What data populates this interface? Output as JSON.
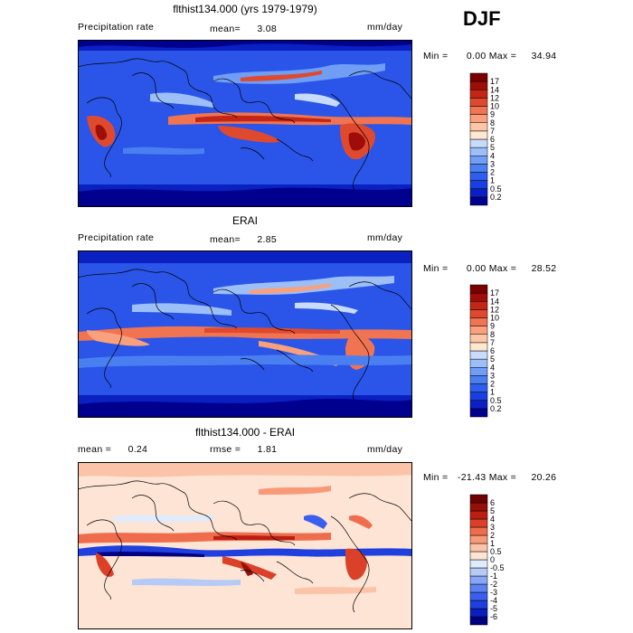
{
  "season": "DJF",
  "chart_data": [
    {
      "type": "heatmap",
      "title": "flthist134.000 (yrs 1979-1979)",
      "field_label": "Precipitation rate",
      "stat1_label": "mean=",
      "stat1_value": "3.08",
      "units": "mm/day",
      "min_label": "Min =",
      "min_value": "0.00",
      "max_label": "Max =",
      "max_value": "34.94",
      "colorbar": {
        "levels": [
          "0.2",
          "0.5",
          "1",
          "2",
          "3",
          "4",
          "5",
          "6",
          "7",
          "8",
          "9",
          "10",
          "12",
          "14",
          "17"
        ],
        "colors": [
          "#00008f",
          "#0b1fc4",
          "#1a3fe0",
          "#2e5ef0",
          "#4a7ff2",
          "#6f9ef4",
          "#9cbff8",
          "#c8dbfb",
          "#ffe8d0",
          "#fdc6a6",
          "#f9a07c",
          "#f07452",
          "#df4a2e",
          "#c42616",
          "#9e0d08",
          "#7a0000"
        ]
      }
    },
    {
      "type": "heatmap",
      "title": "ERAI",
      "field_label": "Precipitation rate",
      "stat1_label": "mean=",
      "stat1_value": "2.85",
      "units": "mm/day",
      "min_label": "Min =",
      "min_value": "0.00",
      "max_label": "Max =",
      "max_value": "28.52",
      "colorbar": {
        "levels": [
          "0.2",
          "0.5",
          "1",
          "2",
          "3",
          "4",
          "5",
          "6",
          "7",
          "8",
          "9",
          "10",
          "12",
          "14",
          "17"
        ],
        "colors": [
          "#00008f",
          "#0b1fc4",
          "#1a3fe0",
          "#2e5ef0",
          "#4a7ff2",
          "#6f9ef4",
          "#9cbff8",
          "#c8dbfb",
          "#ffe8d0",
          "#fdc6a6",
          "#f9a07c",
          "#f07452",
          "#df4a2e",
          "#c42616",
          "#9e0d08",
          "#7a0000"
        ]
      }
    },
    {
      "type": "heatmap",
      "title": "flthist134.000 - ERAI",
      "stat1_label": "mean =",
      "stat1_value": "0.24",
      "stat2_label": "rmse =",
      "stat2_value": "1.81",
      "units": "mm/day",
      "min_label": "Min =",
      "min_value": "-21.43",
      "max_label": "Max =",
      "max_value": "20.26",
      "colorbar": {
        "levels": [
          "-6",
          "-5",
          "-4",
          "-3",
          "-2",
          "-1",
          "-0.5",
          "0",
          "0.5",
          "1",
          "2",
          "3",
          "4",
          "5",
          "6"
        ],
        "colors": [
          "#000080",
          "#0a1fbf",
          "#1f3fdf",
          "#3a5fef",
          "#5a80f2",
          "#88a6f5",
          "#b6caf8",
          "#e0ebfc",
          "#fde4d4",
          "#fbc4a8",
          "#f89a78",
          "#ef6d4c",
          "#db4028",
          "#bd1e12",
          "#961008",
          "#6e0000"
        ]
      }
    }
  ]
}
